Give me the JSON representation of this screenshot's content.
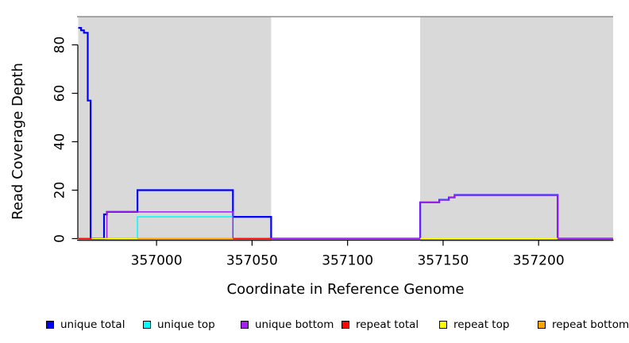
{
  "chart_data": {
    "type": "line",
    "title": "",
    "xlabel": "Coordinate in Reference Genome",
    "ylabel": "Read Coverage Depth",
    "xlim": [
      356959,
      357239
    ],
    "ylim": [
      0,
      93
    ],
    "x_ticks": [
      357000,
      357050,
      357100,
      357150,
      357200
    ],
    "y_ticks": [
      0,
      20,
      40,
      60,
      80
    ],
    "grid": false,
    "legend_position": "bottom",
    "top_border_color": "#8e8e8e",
    "axis_color": "#000000",
    "background_regions": [
      {
        "name": "shaded-region-left",
        "x0": 356959,
        "x1": 357060,
        "color": "#d9d9d9"
      },
      {
        "name": "shaded-region-right",
        "x0": 357138,
        "x1": 357239,
        "color": "#d9d9d9"
      }
    ],
    "series": [
      {
        "name": "unique total",
        "color": "#0000ff",
        "segments": [
          [
            [
              356959,
              87
            ],
            [
              356960.5,
              87
            ],
            [
              356960.5,
              86
            ],
            [
              356962,
              86
            ],
            [
              356962,
              85
            ],
            [
              356964,
              85
            ],
            [
              356964,
              57
            ],
            [
              356965.5,
              57
            ],
            [
              356965.5,
              0
            ],
            [
              356972.5,
              0
            ],
            [
              356972.5,
              10
            ],
            [
              356974,
              10
            ],
            [
              356974,
              11
            ],
            [
              356990,
              11
            ],
            [
              356990,
              20
            ],
            [
              357040,
              20
            ],
            [
              357040,
              9
            ],
            [
              357060,
              9
            ],
            [
              357060,
              0
            ],
            [
              357138,
              0
            ],
            [
              357138,
              15
            ],
            [
              357148,
              15
            ],
            [
              357148,
              16
            ],
            [
              357153,
              16
            ],
            [
              357153,
              17
            ],
            [
              357156,
              17
            ],
            [
              357156,
              18
            ],
            [
              357210,
              18
            ],
            [
              357210,
              0
            ],
            [
              357239,
              0
            ]
          ]
        ]
      },
      {
        "name": "unique top",
        "color": "#00ffff",
        "segments": [
          [
            [
              356959,
              0
            ],
            [
              356990,
              0
            ],
            [
              356990,
              9
            ],
            [
              357040,
              9
            ],
            [
              357040,
              0
            ],
            [
              357239,
              0
            ]
          ]
        ]
      },
      {
        "name": "unique bottom",
        "color": "#a020f0",
        "segments": [
          [
            [
              356959,
              0
            ],
            [
              356974,
              0
            ],
            [
              356974,
              11
            ],
            [
              357040,
              11
            ],
            [
              357040,
              0
            ],
            [
              357138,
              0
            ],
            [
              357138,
              15
            ],
            [
              357148,
              15
            ],
            [
              357148,
              16
            ],
            [
              357153,
              16
            ],
            [
              357153,
              17
            ],
            [
              357156,
              17
            ],
            [
              357156,
              18
            ],
            [
              357210,
              18
            ],
            [
              357210,
              0
            ],
            [
              357239,
              0
            ]
          ]
        ]
      },
      {
        "name": "repeat total",
        "color": "#ff0000",
        "segments": [
          [
            [
              356959,
              0
            ],
            [
              357060,
              0
            ]
          ]
        ]
      },
      {
        "name": "repeat top",
        "color": "#ffff00",
        "segments": [
          [
            [
              356966,
              0
            ],
            [
              357040,
              0
            ]
          ],
          [
            [
              357138,
              0
            ],
            [
              357210,
              0
            ]
          ]
        ]
      },
      {
        "name": "repeat bottom",
        "color": "#ffa500",
        "segments": [
          [
            [
              356990,
              0
            ],
            [
              357040,
              0
            ]
          ]
        ]
      }
    ],
    "legend": [
      {
        "label": "unique total",
        "color": "#0000ff"
      },
      {
        "label": "unique top",
        "color": "#00ffff"
      },
      {
        "label": "unique bottom",
        "color": "#a020f0"
      },
      {
        "label": "repeat total",
        "color": "#ff0000"
      },
      {
        "label": "repeat top",
        "color": "#ffff00"
      },
      {
        "label": "repeat bottom",
        "color": "#ffa500"
      }
    ]
  }
}
